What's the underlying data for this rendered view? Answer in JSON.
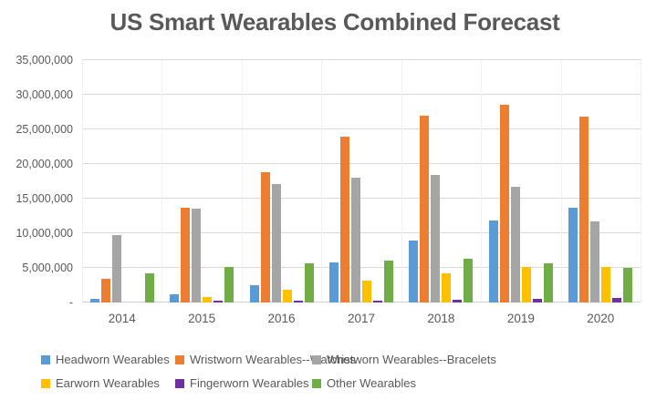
{
  "chart_data": {
    "type": "bar",
    "title": "US Smart Wearables Combined Forecast",
    "xlabel": "",
    "ylabel": "",
    "categories": [
      "2014",
      "2015",
      "2016",
      "2017",
      "2018",
      "2019",
      "2020"
    ],
    "series": [
      {
        "name": "Headworn Wearables",
        "color": "#5B9BD5",
        "values": [
          500000,
          1200000,
          2500000,
          5800000,
          8900000,
          11900000,
          13700000
        ]
      },
      {
        "name": "Wristworn Wearables--Watches",
        "color": "#ED7D31",
        "values": [
          3400000,
          13700000,
          18800000,
          23900000,
          27000000,
          28600000,
          26900000
        ]
      },
      {
        "name": "Wristworn Wearables--Bracelets",
        "color": "#A5A5A5",
        "values": [
          9700000,
          13600000,
          17100000,
          18000000,
          18400000,
          16700000,
          11700000
        ]
      },
      {
        "name": "Earworn Wearables",
        "color": "#FFC000",
        "values": [
          0,
          800000,
          1800000,
          3200000,
          4200000,
          5100000,
          5100000
        ]
      },
      {
        "name": "Fingerworn Wearables",
        "color": "#7030A0",
        "values": [
          0,
          200000,
          200000,
          300000,
          400000,
          500000,
          600000
        ]
      },
      {
        "name": "Other Wearables",
        "color": "#70AD47",
        "values": [
          4200000,
          5100000,
          5700000,
          6100000,
          6300000,
          5700000,
          5000000
        ]
      }
    ],
    "ylim": [
      0,
      35000000
    ],
    "ytick_interval": 5000000,
    "ytick_labels": [
      "-",
      "5,000,000",
      "10,000,000",
      "15,000,000",
      "20,000,000",
      "25,000,000",
      "30,000,000",
      "35,000,000"
    ],
    "grid": true,
    "legend_position": "bottom",
    "text_color": "#595959",
    "grid_color": "#D9D9D9"
  }
}
